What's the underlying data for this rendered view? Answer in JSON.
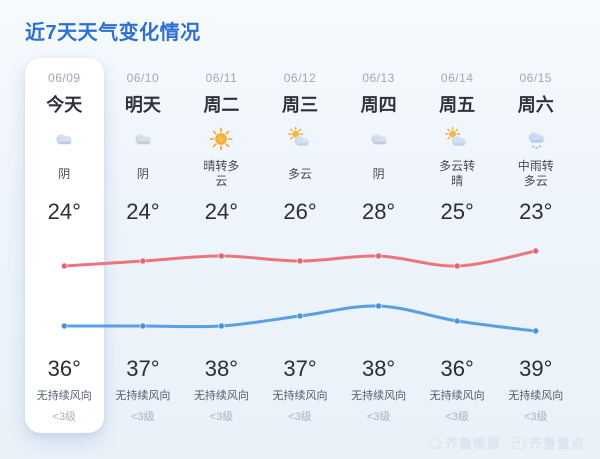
{
  "title": "近7天天气变化情况",
  "forecast": {
    "days": [
      {
        "date": "06/09",
        "day": "今天",
        "icon": "cloud",
        "condition": "阴",
        "temp_top": "24°",
        "temp_bottom": "36°",
        "wind": "无持续风向",
        "wind_level": "<3级",
        "is_today": true
      },
      {
        "date": "06/10",
        "day": "明天",
        "icon": "cloud",
        "condition": "阴",
        "temp_top": "24°",
        "temp_bottom": "37°",
        "wind": "无持续风向",
        "wind_level": "<3级",
        "is_today": false
      },
      {
        "date": "06/11",
        "day": "周二",
        "icon": "sun",
        "condition": "晴转多云",
        "temp_top": "24°",
        "temp_bottom": "38°",
        "wind": "无持续风向",
        "wind_level": "<3级",
        "is_today": false
      },
      {
        "date": "06/12",
        "day": "周三",
        "icon": "sun-cloud",
        "condition": "多云",
        "temp_top": "26°",
        "temp_bottom": "37°",
        "wind": "无持续风向",
        "wind_level": "<3级",
        "is_today": false
      },
      {
        "date": "06/13",
        "day": "周四",
        "icon": "cloud",
        "condition": "阴",
        "temp_top": "28°",
        "temp_bottom": "38°",
        "wind": "无持续风向",
        "wind_level": "<3级",
        "is_today": false
      },
      {
        "date": "06/14",
        "day": "周五",
        "icon": "sun-cloud",
        "condition": "多云转晴",
        "temp_top": "25°",
        "temp_bottom": "36°",
        "wind": "无持续风向",
        "wind_level": "<3级",
        "is_today": false
      },
      {
        "date": "06/15",
        "day": "周六",
        "icon": "rain-cloud",
        "condition": "中雨转多云",
        "temp_top": "23°",
        "temp_bottom": "39°",
        "wind": "无持续风向",
        "wind_level": "<3级",
        "is_today": false
      }
    ]
  },
  "chart_data": {
    "type": "line",
    "categories": [
      "06/09",
      "06/10",
      "06/11",
      "06/12",
      "06/13",
      "06/14",
      "06/15"
    ],
    "series": [
      {
        "name": "red-line-bottom-temps",
        "color": "#ec757c",
        "dot_color": "#e4646e",
        "values": [
          36,
          37,
          38,
          37,
          38,
          36,
          39
        ]
      },
      {
        "name": "blue-line-top-temps",
        "color": "#58a0e6",
        "dot_color": "#4792dd",
        "values": [
          24,
          24,
          24,
          26,
          28,
          25,
          23
        ]
      }
    ],
    "ylim": [
      22,
      40
    ],
    "grid": false,
    "legend": "none",
    "title": "",
    "xlabel": "",
    "ylabel": ""
  },
  "watermark": {
    "source1": "齐鲁晚报",
    "source2": "齐鲁壹点"
  },
  "colors": {
    "title": "#2c70d3",
    "line_high": "#ec757c",
    "line_low": "#58a0e6",
    "today_card": "#ffffff"
  }
}
